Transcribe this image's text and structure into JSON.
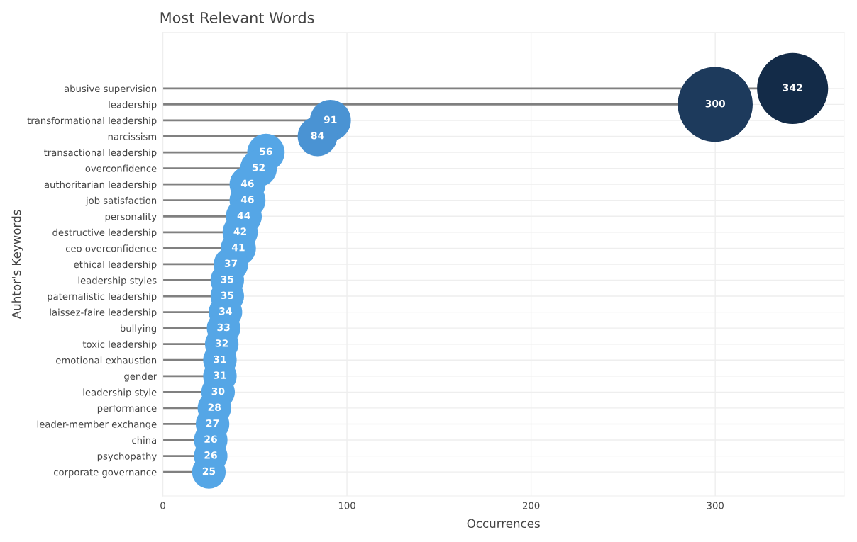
{
  "chart_data": {
    "type": "lollipop",
    "orientation": "horizontal",
    "title": "Most Relevant Words",
    "xlabel": "Occurrences",
    "ylabel": "Auhtor's Keywords",
    "categories": [
      "abusive supervision",
      "leadership",
      "transformational leadership",
      "narcissism",
      "transactional leadership",
      "overconfidence",
      "authoritarian leadership",
      "job satisfaction",
      "personality",
      "destructive leadership",
      "ceo overconfidence",
      "ethical leadership",
      "leadership styles",
      "paternalistic leadership",
      "laissez-faire leadership",
      "bullying",
      "toxic leadership",
      "emotional exhaustion",
      "gender",
      "leadership style",
      "performance",
      "leader-member exchange",
      "china",
      "psychopathy",
      "corporate governance"
    ],
    "values": [
      342,
      300,
      91,
      84,
      56,
      52,
      46,
      46,
      44,
      42,
      41,
      37,
      35,
      35,
      34,
      33,
      32,
      31,
      31,
      30,
      28,
      27,
      26,
      26,
      25
    ],
    "colors": [
      "#132b48",
      "#1d3a5c",
      "#4a93d3",
      "#4a93d3",
      "#55a6e6",
      "#55a6e6",
      "#55a6e6",
      "#55a6e6",
      "#55a6e6",
      "#55a6e6",
      "#55a6e6",
      "#55a6e6",
      "#55a6e6",
      "#55a6e6",
      "#55a6e6",
      "#55a6e6",
      "#55a6e6",
      "#55a6e6",
      "#55a6e6",
      "#55a6e6",
      "#55a6e6",
      "#55a6e6",
      "#55a6e6",
      "#55a6e6",
      "#55a6e6"
    ],
    "sizes": [
      0.9,
      1,
      0.3,
      0.28,
      0.25,
      0.24,
      0.23,
      0.23,
      0.23,
      0.22,
      0.22,
      0.21,
      0.2,
      0.2,
      0.2,
      0.2,
      0.2,
      0.2,
      0.2,
      0.2,
      0.2,
      0.2,
      0.2,
      0.2,
      0.2
    ],
    "data_labels": true,
    "xlim": [
      0,
      370
    ],
    "xticks": [
      0,
      100,
      200,
      300
    ],
    "grid": true,
    "marker": "circle",
    "legend": false
  }
}
